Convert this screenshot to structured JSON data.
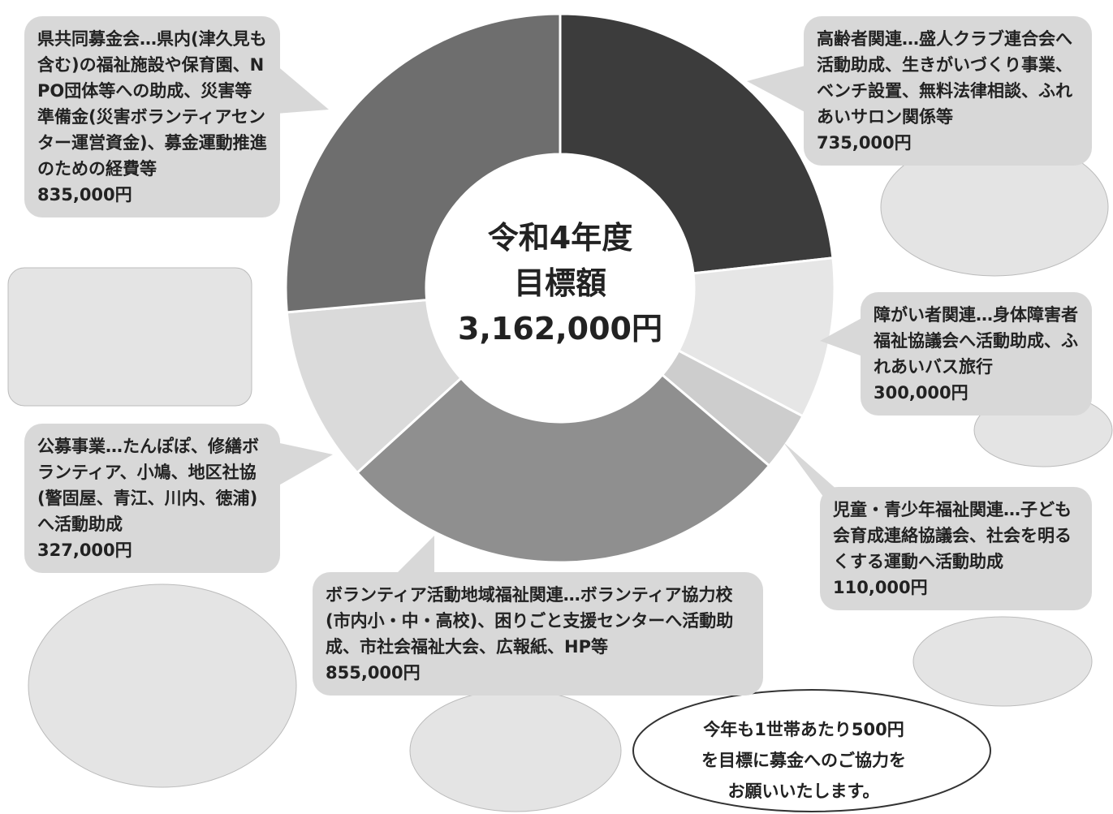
{
  "chart_data": {
    "type": "donut",
    "center_text": [
      "令和4年度",
      "目標額",
      "3,162,000円"
    ],
    "categories": [
      "高齢者関連…盛人クラブ連合会へ活動助成、生きがいづくり事業、ベンチ設置、無料法律相談、ふれあいサロン関係等",
      "障がい者関連…身体障害者福祉協議会へ活動助成、ふれあいバス旅行",
      "児童・青少年福祉関連…子ども会育成連絡協議会、社会を明るくする運動へ活動助成",
      "ボランティア活動地域福祉関連…ボランティア協力校(市内小・中・高校)、困りごと支援センターへ活動助成、市社会福祉大会、広報紙、HP等",
      "公募事業…たんぽぽ、修繕ボランティア、小鳩、地区社協(警固屋、青江、川内、徳浦)へ活動助成",
      "県共同募金会…県内(津久見も含む)の福祉施設や保育園、NPO団体等への助成、災害等準備金(災害ボランティアセンター運営資金)、募金運動推進のための経費等"
    ],
    "values": [
      735000,
      300000,
      110000,
      855000,
      327000,
      835000
    ],
    "value_labels": [
      "735,000円",
      "300,000円",
      "110,000円",
      "855,000円",
      "327,000円",
      "835,000円"
    ],
    "colors": [
      "#3c3c3c",
      "#e6e6e6",
      "#cdcdcd",
      "#8f8f8f",
      "#dadada",
      "#6e6e6e"
    ],
    "note": [
      "今年も1世帯あたり500円",
      "を目標に募金へのご協力を",
      "お願いいたします。"
    ]
  }
}
